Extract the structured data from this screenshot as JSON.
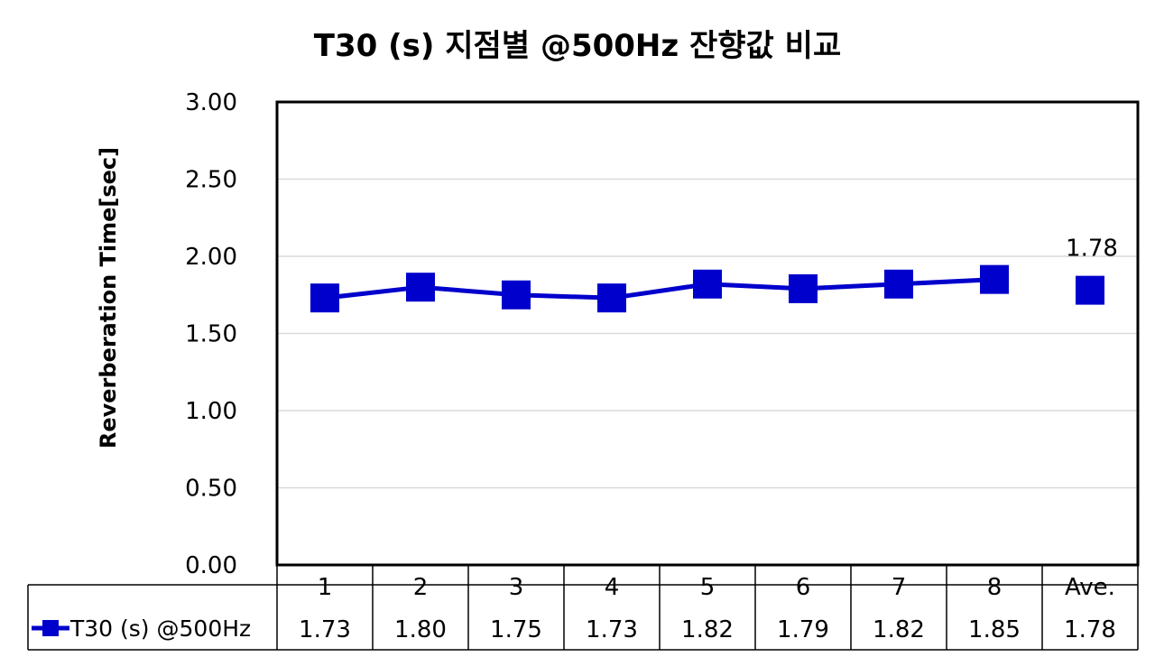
{
  "chart_data": {
    "type": "line",
    "title": "T30 (s) 지점별 @500Hz 잔향값 비교",
    "ylabel": "Reverberation Time[sec]",
    "xlabel": "",
    "ylim": [
      0,
      3
    ],
    "yticks": [
      "0.00",
      "0.50",
      "1.00",
      "1.50",
      "2.00",
      "2.50",
      "3.00"
    ],
    "categories": [
      "1",
      "2",
      "3",
      "4",
      "5",
      "6",
      "7",
      "8",
      "Ave."
    ],
    "series": [
      {
        "name": "T30 (s) @500Hz",
        "values": [
          1.73,
          1.8,
          1.75,
          1.73,
          1.82,
          1.79,
          1.82,
          1.85,
          1.78
        ],
        "table_values": [
          "1.73",
          "1.80",
          "1.75",
          "1.73",
          "1.82",
          "1.79",
          "1.82",
          "1.85",
          "1.78"
        ],
        "connected_points": 8,
        "color": "#0000cc"
      }
    ],
    "data_labels": [
      {
        "category": "Ave.",
        "text": "1.78"
      }
    ],
    "grid": true,
    "legend": "data-table-left",
    "data_table": true
  }
}
